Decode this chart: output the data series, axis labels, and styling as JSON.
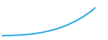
{
  "x": [
    0,
    1,
    2,
    3,
    4,
    5,
    6,
    7,
    8,
    9,
    10,
    11,
    12,
    13,
    14,
    15,
    16,
    17,
    18,
    19,
    20
  ],
  "y": [
    0.0,
    0.01,
    0.02,
    0.04,
    0.06,
    0.09,
    0.13,
    0.18,
    0.24,
    0.31,
    0.4,
    0.5,
    0.62,
    0.76,
    0.92,
    1.1,
    1.3,
    1.53,
    1.78,
    2.06,
    2.4
  ],
  "line_color": "#29a8e0",
  "line_width": 1.2,
  "background_color": "#ffffff",
  "xlim": [
    0,
    20
  ],
  "ylim": [
    -0.1,
    2.8
  ]
}
